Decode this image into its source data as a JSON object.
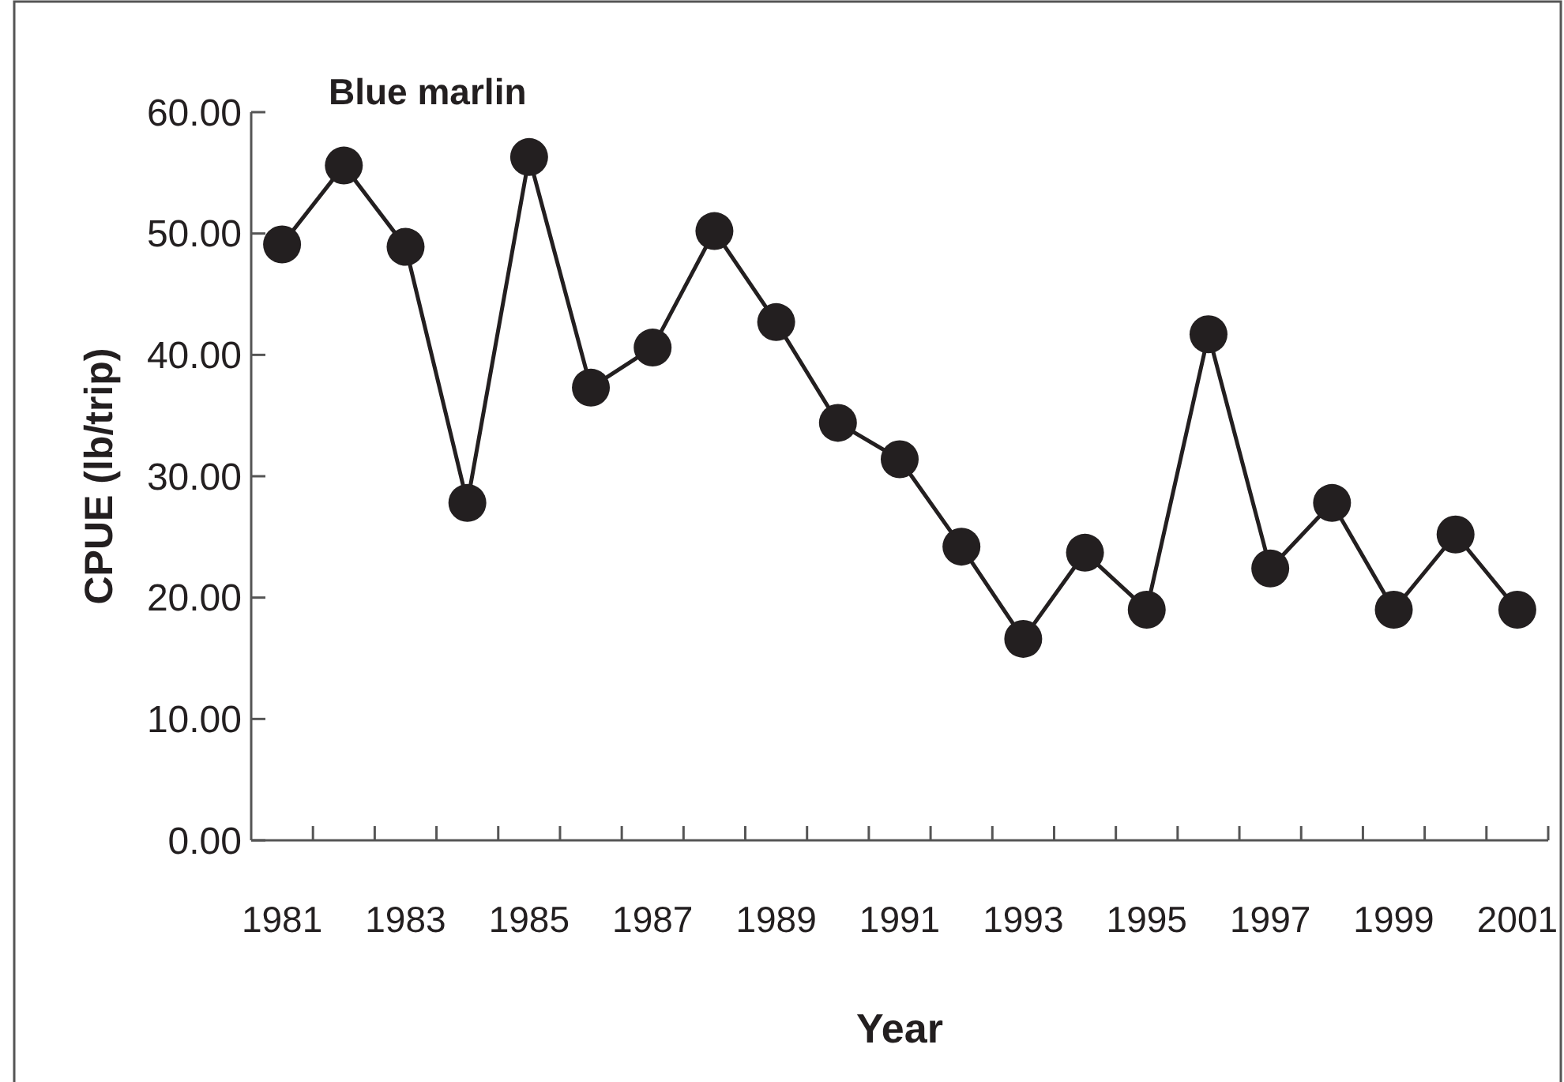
{
  "chart_data": {
    "type": "line",
    "title": "Blue marlin",
    "xlabel": "Year",
    "ylabel": "CPUE (lb/trip)",
    "categories": [
      "1981",
      null,
      "1983",
      null,
      "1985",
      null,
      "1987",
      null,
      "1989",
      null,
      "1991",
      null,
      "1993",
      null,
      "1995",
      null,
      "1997",
      null,
      "1999",
      null,
      "2001"
    ],
    "series": [
      {
        "color": "#231f20",
        "values": [
          49.1,
          55.6,
          48.9,
          27.8,
          56.3,
          37.3,
          40.6,
          50.2,
          42.7,
          34.4,
          31.4,
          24.2,
          16.6,
          23.7,
          19.0,
          41.7,
          22.4,
          27.8,
          19.0,
          25.2,
          19.0
        ]
      }
    ],
    "ylim": [
      0,
      60
    ],
    "yticks": [
      {
        "value": 0,
        "label": "0.00"
      },
      {
        "value": 10,
        "label": "10.00"
      },
      {
        "value": 20,
        "label": "20.00"
      },
      {
        "value": 30,
        "label": "30.00"
      },
      {
        "value": 40,
        "label": "40.00"
      },
      {
        "value": 50,
        "label": "50.00"
      },
      {
        "value": 60,
        "label": "60.00"
      }
    ],
    "grid": false,
    "marker": "circle",
    "line_style": "solid"
  }
}
